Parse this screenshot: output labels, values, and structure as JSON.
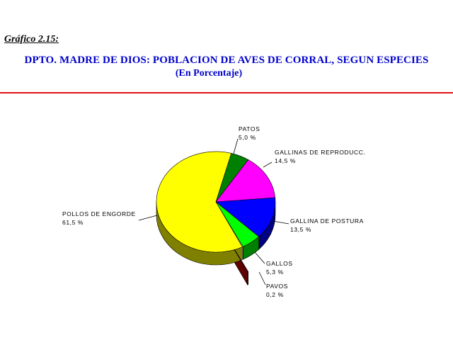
{
  "header": {
    "figure_number": "Gráfico 2.15:",
    "title": "DPTO. MADRE DE DIOS: POBLACION DE AVES DE CORRAL, SEGUN ESPECIES",
    "subtitle": "(En Porcentaje)"
  },
  "chart_data": {
    "type": "pie",
    "title": "DPTO. MADRE DE DIOS: POBLACION DE AVES DE CORRAL, SEGUN ESPECIES",
    "subtitle": "(En Porcentaje)",
    "style": "3d-exploded",
    "slices": [
      {
        "label": "PATOS",
        "value_label": "5,0 %",
        "value": 5.0,
        "color": "#008000",
        "side_color": "#004d00"
      },
      {
        "label": "GALLINAS DE REPRODUCC.",
        "value_label": "14,5 %",
        "value": 14.5,
        "color": "#ff00ff",
        "side_color": "#800080"
      },
      {
        "label": "GALLINA DE POSTURA",
        "value_label": "13,5 %",
        "value": 13.5,
        "color": "#0000ff",
        "side_color": "#000080"
      },
      {
        "label": "GALLOS",
        "value_label": "5,3 %",
        "value": 5.3,
        "color": "#00ff00",
        "side_color": "#008000"
      },
      {
        "label": "PAVOS",
        "value_label": "0,2 %",
        "value": 0.2,
        "color": "#c00000",
        "side_color": "#600000"
      },
      {
        "label": "POLLOS DE ENGORDE",
        "value_label": "61,5 %",
        "value": 61.5,
        "color": "#ffff00",
        "side_color": "#808000"
      }
    ],
    "colors": {
      "title": "#0000cc",
      "rule": "#e01010"
    }
  }
}
